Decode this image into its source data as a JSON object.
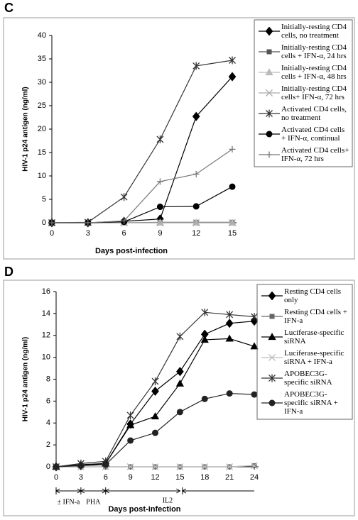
{
  "chart_data": [
    {
      "type": "line",
      "panel_label": "C",
      "ylabel": "HIV-1 p24 antigen (ng/ml)",
      "xlabel": "Days post-infection",
      "x": [
        0,
        3,
        6,
        9,
        12,
        15
      ],
      "xlim": [
        0,
        15
      ],
      "xticks": [
        0,
        3,
        6,
        9,
        12,
        15
      ],
      "ylim": [
        0,
        40
      ],
      "yticks": [
        0,
        5,
        10,
        15,
        20,
        25,
        30,
        35,
        40
      ],
      "series": [
        {
          "name": "Initially-resting CD4 cells, no treatment",
          "color": "#000000",
          "marker": "diamond",
          "values": [
            0,
            0,
            0.3,
            0.8,
            22.7,
            31.2
          ]
        },
        {
          "name": "Initially-resting CD4 cells + IFN-α, 24 hrs",
          "color": "#555555",
          "marker": "square",
          "values": [
            0,
            0,
            0,
            0.1,
            0.1,
            0.1
          ]
        },
        {
          "name": "Initially-resting CD4 cells + IFN-α, 48 hrs",
          "color": "#bbbbbb",
          "marker": "triangle",
          "values": [
            0,
            0,
            0,
            0,
            0,
            0
          ]
        },
        {
          "name": "Initially-resting CD4 cells+ IFN-α, 72 hrs",
          "color": "#aaaaaa",
          "marker": "x",
          "values": [
            0,
            0,
            0,
            0,
            0,
            0
          ]
        },
        {
          "name": "Activated CD4 cells, no treatment",
          "color": "#333333",
          "marker": "asterisk",
          "values": [
            0,
            0.1,
            5.5,
            17.8,
            33.5,
            34.7
          ]
        },
        {
          "name": "Activated CD4 cells + IFN-α, continual",
          "color": "#000000",
          "marker": "circle",
          "values": [
            0,
            0,
            0.2,
            3.4,
            3.5,
            7.7
          ]
        },
        {
          "name": "Activated CD4 cells+ IFN-α, 72 hrs",
          "color": "#777777",
          "marker": "plus",
          "values": [
            0,
            0,
            0.4,
            8.8,
            10.4,
            15.7
          ]
        }
      ]
    },
    {
      "type": "line",
      "panel_label": "D",
      "ylabel": "HIV-1 p24 antigen (ng/ml)",
      "xlabel": "Days post-infection",
      "x": [
        0,
        3,
        6,
        9,
        12,
        15,
        18,
        21,
        24
      ],
      "xlim": [
        0,
        24
      ],
      "xticks": [
        0,
        3,
        6,
        9,
        12,
        15,
        18,
        21,
        24
      ],
      "ylim": [
        0,
        16
      ],
      "yticks": [
        0,
        2,
        4,
        6,
        8,
        10,
        12,
        14,
        16
      ],
      "annotations": [
        "± IFN-a",
        "PHA",
        "IL2"
      ],
      "series": [
        {
          "name": "Resting CD4 cells only",
          "color": "#000000",
          "marker": "diamond",
          "values": [
            0,
            0.1,
            0.3,
            3.9,
            6.9,
            8.7,
            12.1,
            13.1,
            13.3
          ]
        },
        {
          "name": "Resting CD4 cells + IFN-a",
          "color": "#666666",
          "marker": "square",
          "values": [
            0,
            0,
            0,
            0,
            0,
            0,
            0,
            0,
            0.1
          ]
        },
        {
          "name": "Luciferase-specific siRNA",
          "color": "#000000",
          "marker": "triangle",
          "values": [
            0,
            0.2,
            0.3,
            3.8,
            4.6,
            7.6,
            11.6,
            11.7,
            11.0
          ]
        },
        {
          "name": "Luciferase-specific siRNA + IFN-a",
          "color": "#bbbbbb",
          "marker": "x",
          "values": [
            0,
            0,
            0,
            0,
            0,
            0,
            0,
            0,
            0.1
          ]
        },
        {
          "name": "APOBEC3G-specific siRNA",
          "color": "#333333",
          "marker": "asterisk",
          "values": [
            0,
            0.3,
            0.5,
            4.7,
            7.8,
            11.9,
            14.1,
            13.9,
            13.7
          ]
        },
        {
          "name": "APOBEC3G-specific siRNA + IFN-a",
          "color": "#222222",
          "marker": "circle",
          "values": [
            0,
            0.1,
            0.2,
            2.4,
            3.1,
            5.0,
            6.2,
            6.7,
            6.6
          ]
        }
      ]
    }
  ]
}
